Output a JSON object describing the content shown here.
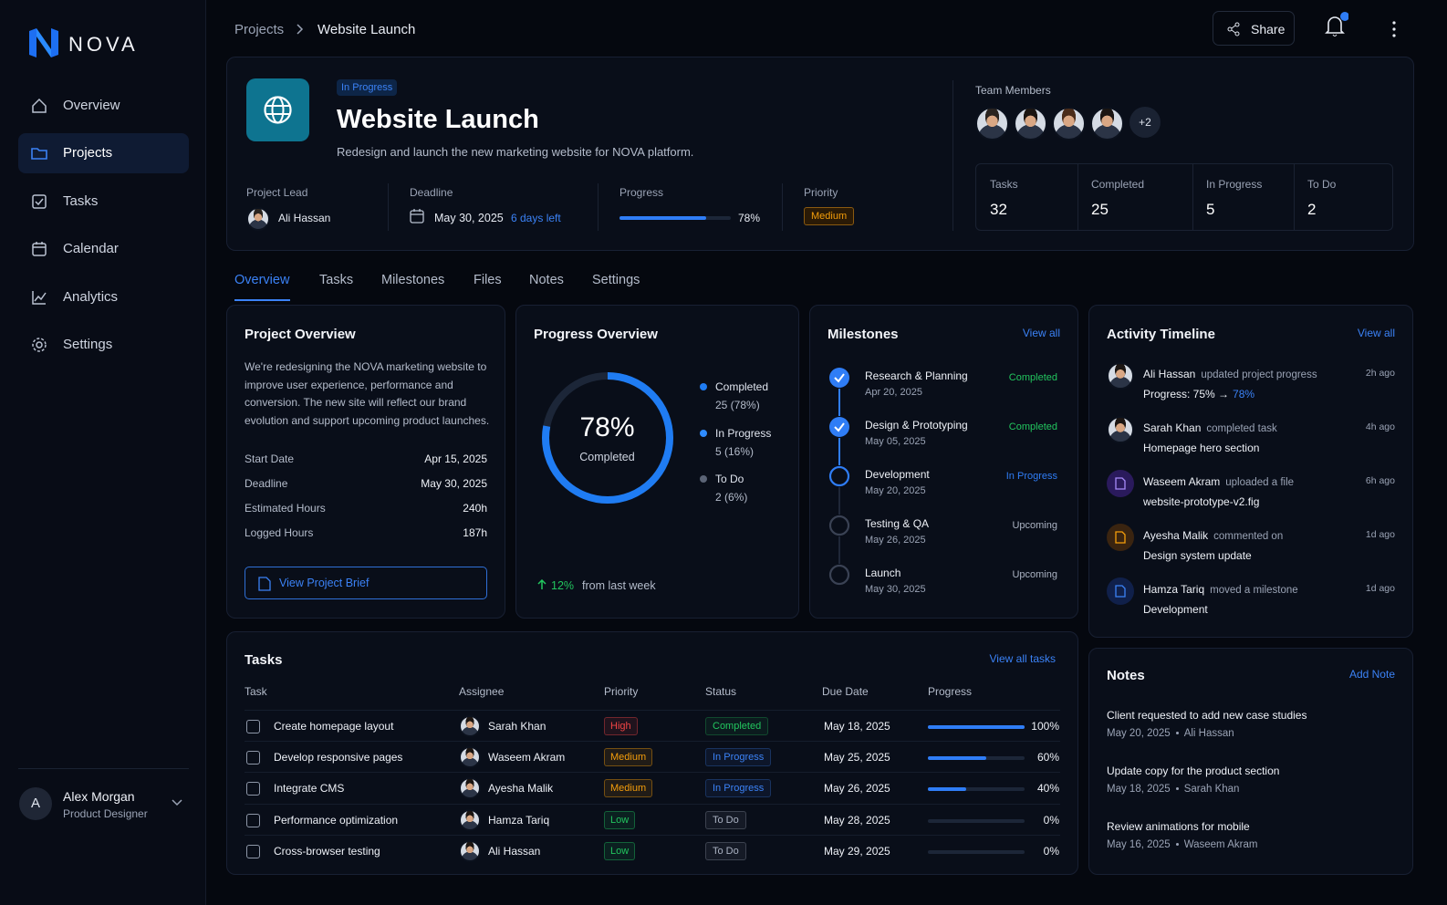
{
  "sidebar": {
    "brand": "NOVA",
    "nav": [
      "Overview",
      "Projects",
      "Tasks",
      "Calendar",
      "Analytics",
      "Settings"
    ]
  },
  "user": {
    "initial": "A",
    "name": "Alex Morgan",
    "role": "Product Designer"
  },
  "breadcrumb": [
    "Projects",
    "Website Launch"
  ],
  "toolbar": {
    "share": "Share"
  },
  "project": {
    "status": "In Progress",
    "title": "Website Launch",
    "description": "Redesign and launch the new marketing website for NOVA platform.",
    "lead_label": "Project Lead",
    "lead": "Ali Hassan",
    "deadline_label": "Deadline",
    "deadline": "May 30, 2025",
    "days_left": "6 days left",
    "progress_label": "Progress",
    "progress": 78,
    "progress_text": "78%",
    "priority_label": "Priority",
    "priority": "Medium"
  },
  "team": {
    "label": "Team Members",
    "more": "+2",
    "stats": [
      {
        "label": "Tasks",
        "value": 32
      },
      {
        "label": "Completed",
        "value": 25
      },
      {
        "label": "In Progress",
        "value": 5
      },
      {
        "label": "To Do",
        "value": 2
      }
    ]
  },
  "tabs": [
    "Overview",
    "Tasks",
    "Milestones",
    "Files",
    "Notes",
    "Settings"
  ],
  "overview": {
    "title": "Project Overview",
    "text": "We're redesigning the NOVA marketing website to improve user experience, performance and conversion. The new site will reflect our brand evolution and support upcoming product launches.",
    "details": [
      [
        "Start Date",
        "Apr 15, 2025"
      ],
      [
        "Deadline",
        "May 30, 2025"
      ],
      [
        "Estimated Hours",
        "240h"
      ],
      [
        "Logged Hours",
        "187h"
      ]
    ],
    "button": "View Project Brief"
  },
  "progress_overview": {
    "title": "Progress Overview",
    "percent": 78,
    "percent_label": "78%",
    "caption": "Completed",
    "legend": [
      {
        "name": "Completed",
        "detail": "25 (78%)",
        "color": "#1f7cf3"
      },
      {
        "name": "In Progress",
        "detail": "5 (16%)",
        "color": "#2f8cff"
      },
      {
        "name": "To Do",
        "detail": "2 (6%)",
        "color": "#5b6476"
      }
    ],
    "change": "12%",
    "change_text": "from last week"
  },
  "milestones": {
    "title": "Milestones",
    "view_all": "View all",
    "items": [
      {
        "name": "Research & Planning",
        "date": "Apr 20, 2025",
        "status": "Completed",
        "color": "#22c55e",
        "done": true
      },
      {
        "name": "Design & Prototyping",
        "date": "May 05, 2025",
        "status": "Completed",
        "color": "#22c55e",
        "done": true
      },
      {
        "name": "Development",
        "date": "May 20, 2025",
        "status": "In Progress",
        "color": "#2f7df6",
        "done": false
      },
      {
        "name": "Testing & QA",
        "date": "May 26, 2025",
        "status": "Upcoming",
        "color": "#aab2c2",
        "done": false
      },
      {
        "name": "Launch",
        "date": "May 30, 2025",
        "status": "Upcoming",
        "color": "#aab2c2",
        "done": false
      }
    ]
  },
  "activity": {
    "title": "Activity Timeline",
    "view_all": "View all",
    "items": [
      {
        "user": "Ali Hassan",
        "action": "updated project progress",
        "detail": "Progress: 75% →",
        "highlight": "78%",
        "time": "2h ago"
      },
      {
        "user": "Sarah Khan",
        "action": "completed task",
        "detail": "Homepage hero section",
        "time": "4h ago"
      },
      {
        "user": "Waseem Akram",
        "action": "uploaded a file",
        "detail": "website-prototype-v2.fig",
        "time": "6h ago"
      },
      {
        "user": "Ayesha Malik",
        "action": "commented on",
        "detail": "Design system update",
        "time": "1d ago"
      },
      {
        "user": "Hamza Tariq",
        "action": "moved a milestone",
        "detail": "Development",
        "time": "1d ago"
      }
    ]
  },
  "tasks": {
    "title": "Tasks",
    "view_all": "View all tasks",
    "columns": [
      "Task",
      "Assignee",
      "Priority",
      "Status",
      "Due Date",
      "Progress"
    ],
    "rows": [
      {
        "task": "Create homepage layout",
        "assignee": "Sarah Khan",
        "priority": "High",
        "priority_color": "#ef4444",
        "status": "Completed",
        "status_color": "#22c55e",
        "due": "May 18, 2025",
        "progress": 100,
        "progress_label": "100%"
      },
      {
        "task": "Develop responsive pages",
        "assignee": "Waseem Akram",
        "priority": "Medium",
        "priority_color": "#f59e0b",
        "status": "In Progress",
        "status_color": "#3b82f6",
        "due": "May 25, 2025",
        "progress": 60,
        "progress_label": "60%"
      },
      {
        "task": "Integrate CMS",
        "assignee": "Ayesha Malik",
        "priority": "Medium",
        "priority_color": "#f59e0b",
        "status": "In Progress",
        "status_color": "#3b82f6",
        "due": "May 26, 2025",
        "progress": 40,
        "progress_label": "40%"
      },
      {
        "task": "Performance optimization",
        "assignee": "Hamza Tariq",
        "priority": "Low",
        "priority_color": "#22c55e",
        "status": "To Do",
        "status_color": "#aab2c2",
        "due": "May 28, 2025",
        "progress": 0,
        "progress_label": "0%"
      },
      {
        "task": "Cross-browser testing",
        "assignee": "Ali Hassan",
        "priority": "Low",
        "priority_color": "#22c55e",
        "status": "To Do",
        "status_color": "#aab2c2",
        "due": "May 29, 2025",
        "progress": 0,
        "progress_label": "0%"
      }
    ]
  },
  "notes": {
    "title": "Notes",
    "add": "Add Note",
    "items": [
      {
        "text": "Client requested to add new case studies",
        "date": "May 20, 2025",
        "author": "Ali Hassan"
      },
      {
        "text": "Update copy for the product section",
        "date": "May 18, 2025",
        "author": "Sarah Khan"
      },
      {
        "text": "Review animations for mobile",
        "date": "May 16, 2025",
        "author": "Waseem Akram"
      }
    ]
  }
}
